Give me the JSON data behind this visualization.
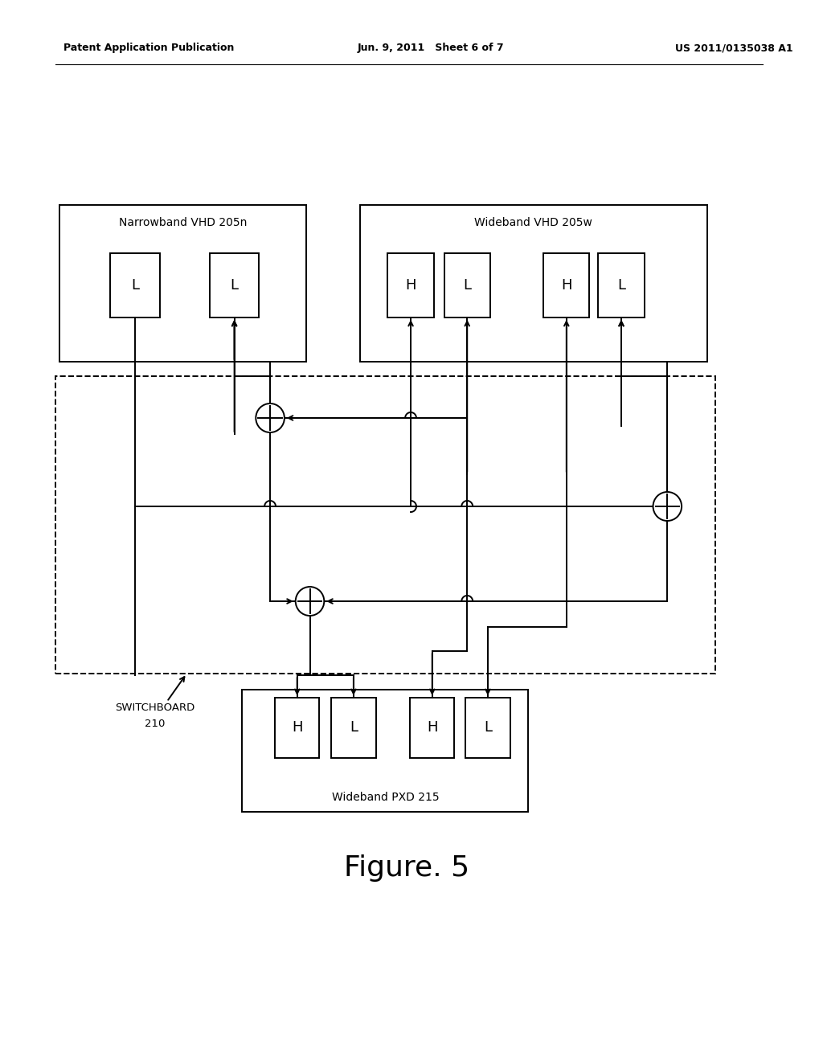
{
  "background_color": "#ffffff",
  "header_left": "Patent Application Publication",
  "header_center": "Jun. 9, 2011   Sheet 6 of 7",
  "header_right": "US 2011/0135038 A1",
  "figure_label": "Figure. 5",
  "narrowband_label": "Narrowband VHD 205n",
  "wideband_vhd_label": "Wideband VHD 205w",
  "wideband_pxd_label": "Wideband PXD 215",
  "switchboard_line1": "SWITCHBOARD",
  "switchboard_line2": "210"
}
